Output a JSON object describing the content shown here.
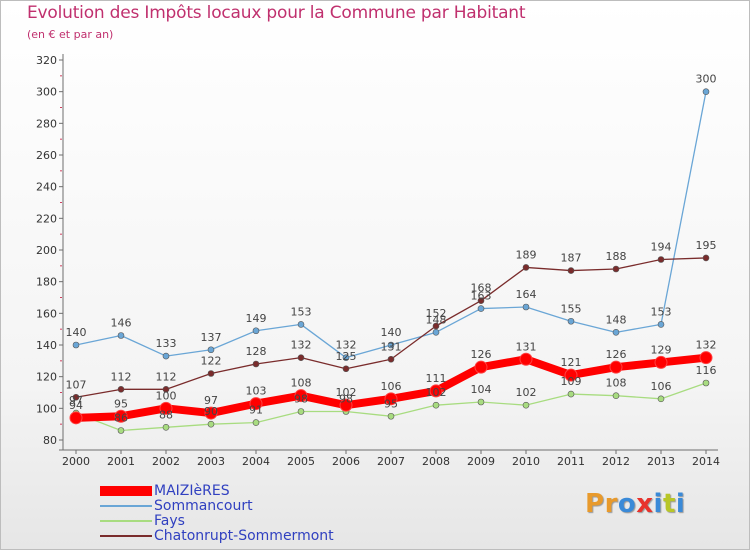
{
  "title": "Evolution des Impôts locaux pour la Commune par Habitant",
  "subtitle": "(en € et par an)",
  "logo": {
    "text": "Proxiti",
    "colors": [
      "#e89a2c",
      "#e89a2c",
      "#3a8ad8",
      "#e8322c",
      "#3a8ad8",
      "#b8c628",
      "#3a8ad8"
    ]
  },
  "chart_data": {
    "type": "line",
    "title": "Evolution des Impôts locaux pour la Commune par Habitant",
    "subtitle": "(en € et par an)",
    "x": [
      "2000",
      "2001",
      "2002",
      "2003",
      "2004",
      "2005",
      "2006",
      "2007",
      "2008",
      "2009",
      "2010",
      "2011",
      "2012",
      "2013",
      "2014"
    ],
    "y_ticks": [
      80,
      100,
      120,
      140,
      160,
      180,
      200,
      220,
      240,
      260,
      280,
      300,
      320
    ],
    "ylim": [
      80,
      320
    ],
    "grid": false,
    "legend_position": "bottom-left",
    "series": [
      {
        "name": "MAIZIèRES",
        "color": "#ff0000",
        "width": 8,
        "values": [
          94,
          95,
          100,
          97,
          103,
          108,
          102,
          106,
          111,
          126,
          131,
          121,
          126,
          129,
          132
        ],
        "labels": [
          "94",
          "95",
          "100",
          "97",
          "103",
          "108",
          "102",
          "106",
          "111",
          "126",
          "131",
          "121",
          "126",
          "129",
          "132"
        ]
      },
      {
        "name": "Sommancourt",
        "color": "#6aa6d6",
        "width": 1.3,
        "values": [
          140,
          146,
          133,
          137,
          149,
          153,
          132,
          140,
          148,
          163,
          164,
          155,
          148,
          153,
          300
        ],
        "labels": [
          "140",
          "146",
          "133",
          "137",
          "149",
          "153",
          "132",
          "140",
          "148",
          "163",
          "164",
          "155",
          "148",
          "153",
          "300"
        ]
      },
      {
        "name": "Fays",
        "color": "#a8dc80",
        "width": 1.3,
        "values": [
          97,
          86,
          88,
          90,
          91,
          98,
          98,
          95,
          102,
          104,
          102,
          109,
          108,
          106,
          116
        ],
        "labels": [
          "97",
          "86",
          "88",
          "90",
          "91",
          "98",
          "98",
          "95",
          "102",
          "104",
          "102",
          "109",
          "108",
          "106",
          "116"
        ]
      },
      {
        "name": "Chatonrupt-Sommermont",
        "color": "#7a2c2c",
        "width": 1.3,
        "values": [
          107,
          112,
          112,
          122,
          128,
          132,
          125,
          131,
          152,
          168,
          189,
          187,
          188,
          194,
          195
        ],
        "labels": [
          "107",
          "112",
          "112",
          "122",
          "128",
          "132",
          "125",
          "131",
          "152",
          "168",
          "189",
          "187",
          "188",
          "194",
          "195"
        ]
      }
    ]
  }
}
